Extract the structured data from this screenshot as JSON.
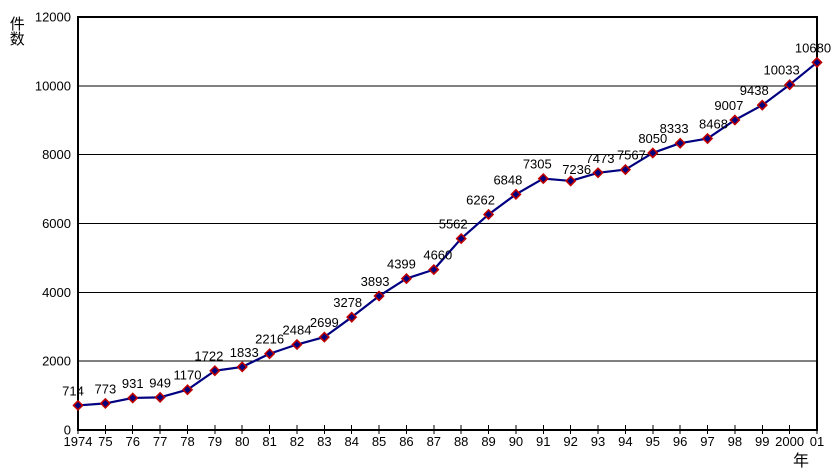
{
  "chart_data": {
    "type": "line",
    "title": "",
    "xlabel": "年",
    "ylabel": "件数",
    "x": [
      "1974",
      "75",
      "76",
      "77",
      "78",
      "79",
      "80",
      "81",
      "82",
      "83",
      "84",
      "85",
      "86",
      "87",
      "88",
      "89",
      "90",
      "91",
      "92",
      "93",
      "94",
      "95",
      "96",
      "97",
      "98",
      "99",
      "2000",
      "01"
    ],
    "series": [
      {
        "name": "件数",
        "values": [
          714,
          773,
          931,
          949,
          1170,
          1722,
          1833,
          2216,
          2484,
          2699,
          3278,
          3893,
          4399,
          4660,
          5562,
          6262,
          6848,
          7305,
          7236,
          7473,
          7567,
          8050,
          8333,
          8468,
          9007,
          9438,
          10033,
          10680
        ]
      }
    ],
    "point_labels": [
      "714",
      "773",
      "931",
      "949",
      "1170",
      "1722",
      "1833",
      "2216",
      "2484",
      "2699",
      "3278",
      "3893",
      "4399",
      "4660",
      "5562",
      "6262",
      "6848",
      "7305",
      "7236",
      "7473",
      "7567",
      "8050",
      "8333",
      "8468",
      "9007",
      "9438",
      "10033",
      "10680"
    ],
    "ylim": [
      0,
      12000
    ],
    "yticks": [
      0,
      2000,
      4000,
      6000,
      8000,
      10000,
      12000
    ],
    "grid": true,
    "legend_position": "none",
    "colors": {
      "line": "#000080",
      "marker_fill": "#000080",
      "marker_stroke": "#C00000",
      "axis": "#000000",
      "grid": "#000000",
      "text": "#000000",
      "background": "#FFFFFF"
    },
    "marker": "diamond",
    "label_dx": {
      "0": -5,
      "5": -6,
      "6": 2,
      "10": -4,
      "11": -4,
      "12": -5,
      "13": 4,
      "14": -8,
      "15": -8,
      "16": -8,
      "17": -6,
      "18": 6,
      "19": 2,
      "20": 6,
      "22": -6,
      "23": 6,
      "24": -6,
      "25": -8,
      "26": -8,
      "27": -4
    },
    "label_dy": {
      "18": 3
    }
  }
}
